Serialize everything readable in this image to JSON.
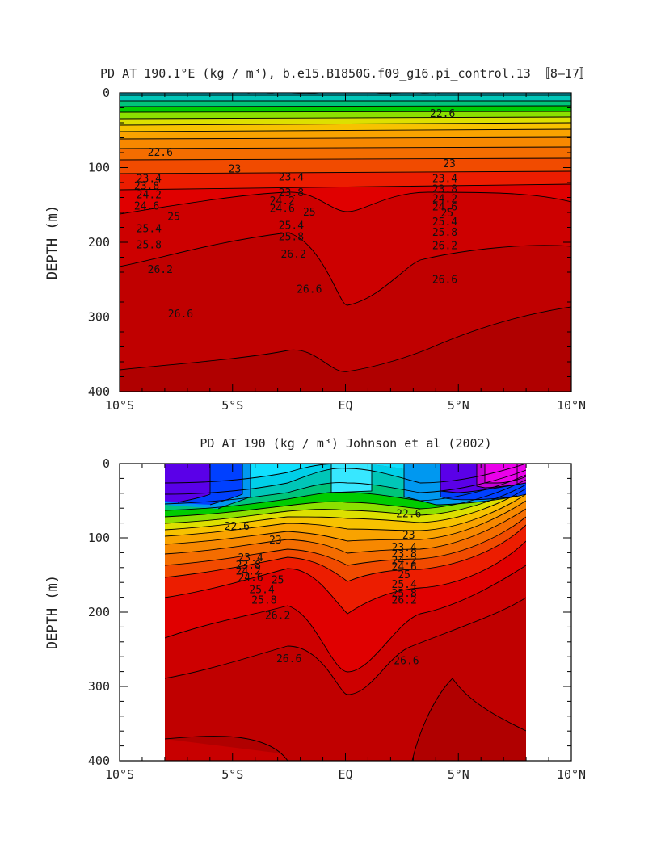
{
  "chart_data": [
    {
      "type": "contour",
      "title": "PD AT 190.1°E (kg / m³), b.e15.B1850G.f09_g16.pi_control.13 〚8–17〛",
      "xlabel": "",
      "ylabel": "DEPTH (m)",
      "xlim": [
        -10,
        10
      ],
      "ylim": [
        400,
        0
      ],
      "x_ticks": [
        "10°S",
        "5°S",
        "EQ",
        "5°N",
        "10°N"
      ],
      "y_ticks": [
        "0",
        "100",
        "200",
        "300",
        "400"
      ],
      "data_extent_x": [
        -10,
        10
      ],
      "data_extent_y": [
        5,
        375
      ],
      "contour_labels": [
        {
          "text": "22.6",
          "x": -8.2,
          "y": 80
        },
        {
          "text": "23",
          "x": -4.9,
          "y": 102
        },
        {
          "text": "23.4",
          "x": -8.7,
          "y": 115
        },
        {
          "text": "23.8",
          "x": -8.8,
          "y": 125
        },
        {
          "text": "24.2",
          "x": -8.7,
          "y": 137
        },
        {
          "text": "24.6",
          "x": -8.8,
          "y": 152
        },
        {
          "text": "25",
          "x": -7.6,
          "y": 166
        },
        {
          "text": "25.4",
          "x": -8.7,
          "y": 182
        },
        {
          "text": "25.8",
          "x": -8.7,
          "y": 204
        },
        {
          "text": "26.2",
          "x": -8.2,
          "y": 237
        },
        {
          "text": "26.6",
          "x": -7.3,
          "y": 296
        },
        {
          "text": "23.4",
          "x": -2.4,
          "y": 113
        },
        {
          "text": "23.8",
          "x": -2.4,
          "y": 134
        },
        {
          "text": "24.2",
          "x": -2.8,
          "y": 145
        },
        {
          "text": "24.6",
          "x": -2.8,
          "y": 155
        },
        {
          "text": "25",
          "x": -1.6,
          "y": 160
        },
        {
          "text": "25.4",
          "x": -2.4,
          "y": 178
        },
        {
          "text": "25.8",
          "x": -2.4,
          "y": 193
        },
        {
          "text": "26.2",
          "x": -2.3,
          "y": 216
        },
        {
          "text": "26.6",
          "x": -1.6,
          "y": 263
        },
        {
          "text": "22.6",
          "x": 4.3,
          "y": 28
        },
        {
          "text": "23",
          "x": 4.6,
          "y": 95
        },
        {
          "text": "23.4",
          "x": 4.4,
          "y": 115
        },
        {
          "text": "23.8",
          "x": 4.4,
          "y": 129
        },
        {
          "text": "24.2",
          "x": 4.4,
          "y": 142
        },
        {
          "text": "24.6",
          "x": 4.4,
          "y": 153
        },
        {
          "text": "25",
          "x": 4.5,
          "y": 161
        },
        {
          "text": "25.4",
          "x": 4.4,
          "y": 173
        },
        {
          "text": "25.8",
          "x": 4.4,
          "y": 187
        },
        {
          "text": "26.2",
          "x": 4.4,
          "y": 205
        },
        {
          "text": "26.6",
          "x": 4.4,
          "y": 250
        }
      ]
    },
    {
      "type": "contour",
      "title": "PD AT 190 (kg / m³) Johnson et al (2002)",
      "xlabel": "",
      "ylabel": "DEPTH (m)",
      "xlim": [
        -10,
        10
      ],
      "ylim": [
        400,
        0
      ],
      "x_ticks": [
        "10°S",
        "5°S",
        "EQ",
        "5°N",
        "10°N"
      ],
      "y_ticks": [
        "0",
        "100",
        "200",
        "300",
        "400"
      ],
      "data_extent_x": [
        -8,
        8
      ],
      "data_extent_y": [
        5,
        400
      ],
      "contour_labels": [
        {
          "text": "22.6",
          "x": -4.8,
          "y": 85
        },
        {
          "text": "23",
          "x": -3.1,
          "y": 103
        },
        {
          "text": "23.4",
          "x": -4.2,
          "y": 127
        },
        {
          "text": "23.8",
          "x": -4.3,
          "y": 137
        },
        {
          "text": "24.2",
          "x": -4.3,
          "y": 145
        },
        {
          "text": "24.6",
          "x": -4.2,
          "y": 154
        },
        {
          "text": "25",
          "x": -3.0,
          "y": 157
        },
        {
          "text": "25.4",
          "x": -3.7,
          "y": 170
        },
        {
          "text": "25.8",
          "x": -3.6,
          "y": 184
        },
        {
          "text": "26.2",
          "x": -3.0,
          "y": 205
        },
        {
          "text": "26.6",
          "x": -2.5,
          "y": 263
        },
        {
          "text": "22.6",
          "x": 2.8,
          "y": 68
        },
        {
          "text": "23",
          "x": 2.8,
          "y": 97
        },
        {
          "text": "23.4",
          "x": 2.6,
          "y": 113
        },
        {
          "text": "23.8",
          "x": 2.6,
          "y": 122
        },
        {
          "text": "24.2",
          "x": 2.6,
          "y": 131
        },
        {
          "text": "24.6",
          "x": 2.6,
          "y": 139
        },
        {
          "text": "25",
          "x": 2.6,
          "y": 150
        },
        {
          "text": "25.4",
          "x": 2.6,
          "y": 163
        },
        {
          "text": "25.8",
          "x": 2.6,
          "y": 175
        },
        {
          "text": "26.2",
          "x": 2.6,
          "y": 184
        },
        {
          "text": "26.6",
          "x": 2.7,
          "y": 266
        }
      ]
    }
  ]
}
